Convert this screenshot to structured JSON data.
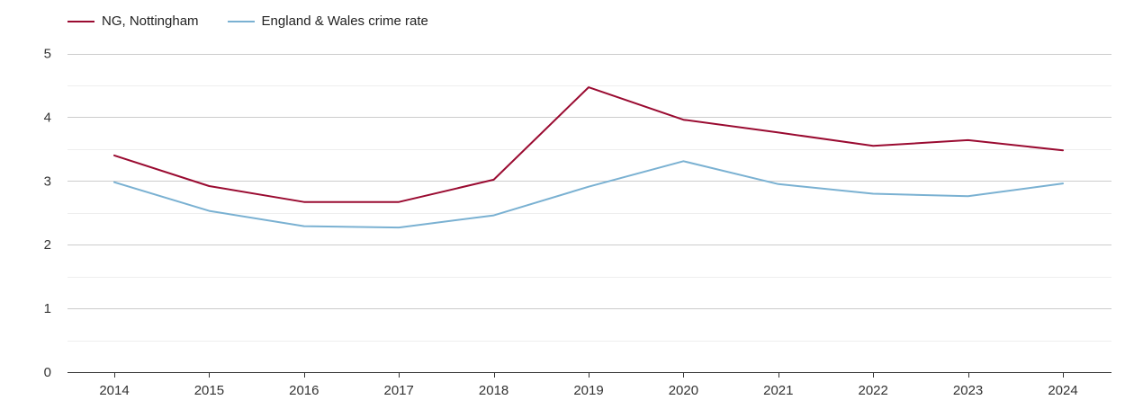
{
  "colors": {
    "series_0": "#9a0b31",
    "series_1": "#7ab1d2",
    "grid_major": "#cccccc",
    "grid_minor": "#eeeeee",
    "axis": "#333333",
    "text": "#333333"
  },
  "chart_data": {
    "type": "line",
    "title": "",
    "xlabel": "",
    "ylabel": "",
    "ylim": [
      0,
      5
    ],
    "yticks": [
      "0",
      "1",
      "2",
      "3",
      "4",
      "5"
    ],
    "grid": true,
    "legend_position": "top-left",
    "categories": [
      "2014",
      "2015",
      "2016",
      "2017",
      "2018",
      "2019",
      "2020",
      "2021",
      "2022",
      "2023",
      "2024"
    ],
    "series": [
      {
        "name": "NG, Nottingham",
        "values": [
          3.4,
          2.92,
          2.67,
          2.67,
          3.02,
          4.47,
          3.96,
          3.76,
          3.55,
          3.64,
          3.48
        ]
      },
      {
        "name": "England & Wales crime rate",
        "values": [
          2.98,
          2.53,
          2.29,
          2.27,
          2.46,
          2.91,
          3.31,
          2.95,
          2.8,
          2.76,
          2.96
        ]
      }
    ]
  }
}
